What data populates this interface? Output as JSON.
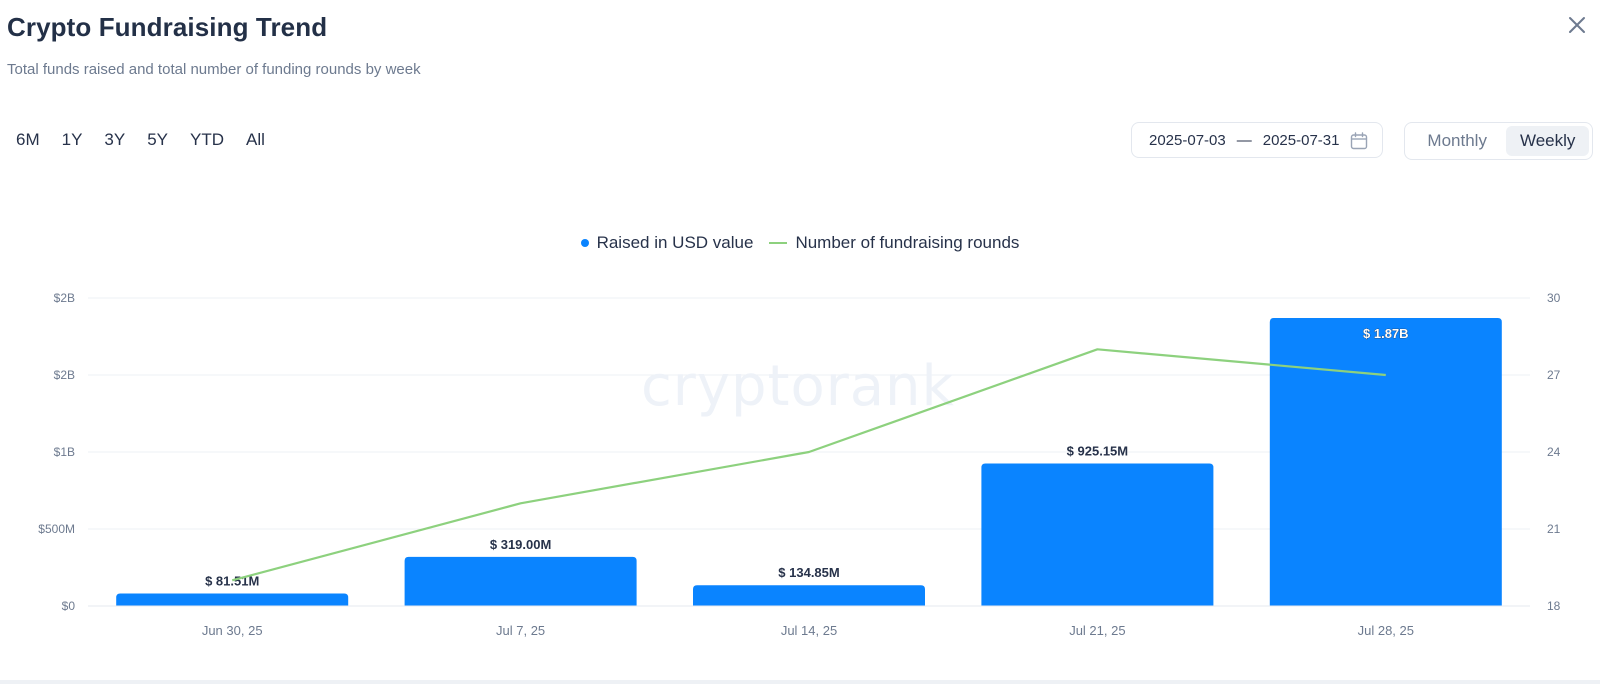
{
  "header": {
    "title": "Crypto Fundraising Trend",
    "subtitle": "Total funds raised and total number of funding rounds by week"
  },
  "period_tabs": [
    "6M",
    "1Y",
    "3Y",
    "5Y",
    "YTD",
    "All"
  ],
  "date_range": {
    "start": "2025-07-03",
    "separator": "—",
    "end": "2025-07-31"
  },
  "granularity": {
    "options": [
      "Monthly",
      "Weekly"
    ],
    "selected": "Weekly"
  },
  "watermark": "cryptorank",
  "colors": {
    "bar": "#0a84ff",
    "line": "#8dd17e",
    "grid": "#eef0f4",
    "axis_text": "#6d7a8f"
  },
  "chart_data": {
    "type": "bar",
    "categories": [
      "Jun 30, 25",
      "Jul 7, 25",
      "Jul 14, 25",
      "Jul 21, 25",
      "Jul 28, 25"
    ],
    "series": [
      {
        "name": "Raised in USD value",
        "type": "bar",
        "axis": "left",
        "values": [
          81.51,
          319.0,
          134.85,
          925.15,
          1870
        ],
        "labels": [
          "$ 81.51M",
          "$ 319.00M",
          "$ 134.85M",
          "$ 925.15M",
          "$ 1.87B"
        ]
      },
      {
        "name": "Number of fundraising rounds",
        "type": "line",
        "axis": "right",
        "values": [
          19,
          22,
          24,
          28,
          27
        ]
      }
    ],
    "y_left": {
      "unit": "USD millions",
      "ylim": [
        0,
        2000
      ],
      "ticks": [
        0,
        500,
        1000,
        1500,
        2000
      ],
      "tick_labels": [
        "$0",
        "$500M",
        "$1B",
        "$2B",
        "$2B"
      ]
    },
    "y_right": {
      "ylim": [
        18,
        30
      ],
      "ticks": [
        18,
        21,
        24,
        27,
        30
      ],
      "tick_labels": [
        "18",
        "21",
        "24",
        "27",
        "30"
      ]
    },
    "grid": true,
    "legend_position": "top-center"
  }
}
